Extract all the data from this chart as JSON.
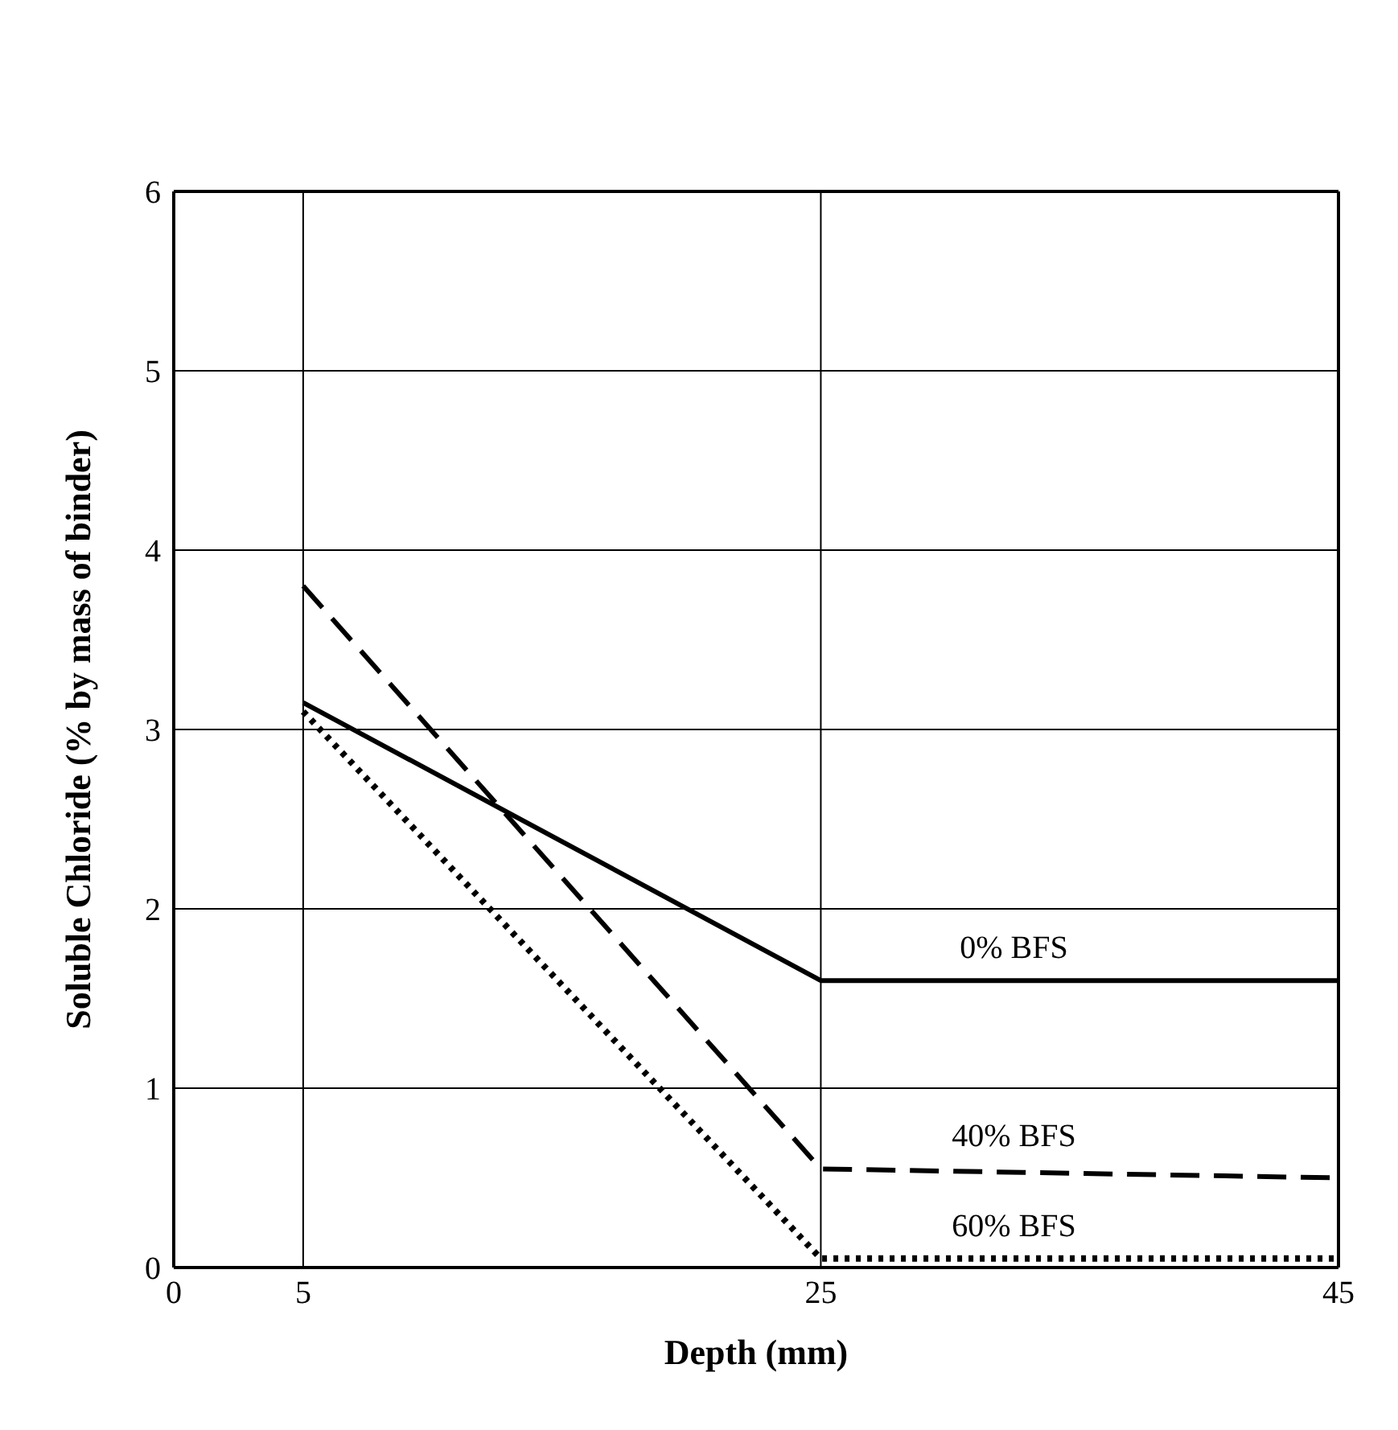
{
  "chart_data": {
    "type": "line",
    "xlabel": "Depth (mm)",
    "ylabel": "Soluble Chloride (% by mass of binder)",
    "x": [
      5,
      25,
      45
    ],
    "series": [
      {
        "name": "0% BFS",
        "color": "#000000",
        "values": [
          3.15,
          1.6,
          1.6
        ],
        "line_style": "solid"
      },
      {
        "name": "40% BFS",
        "color": "#000000",
        "values": [
          3.8,
          0.55,
          0.5
        ],
        "line_style": "dashed"
      },
      {
        "name": "60% BFS",
        "color": "#000000",
        "values": [
          3.1,
          0.05,
          0.05
        ],
        "line_style": "dotted"
      }
    ],
    "xlim": [
      0,
      45
    ],
    "xticks": [
      0,
      5,
      25,
      45
    ],
    "ylim": [
      0,
      6
    ],
    "yticks": [
      0,
      1,
      2,
      3,
      4,
      5,
      6
    ],
    "grid": true,
    "legend": false,
    "marker": "none"
  }
}
